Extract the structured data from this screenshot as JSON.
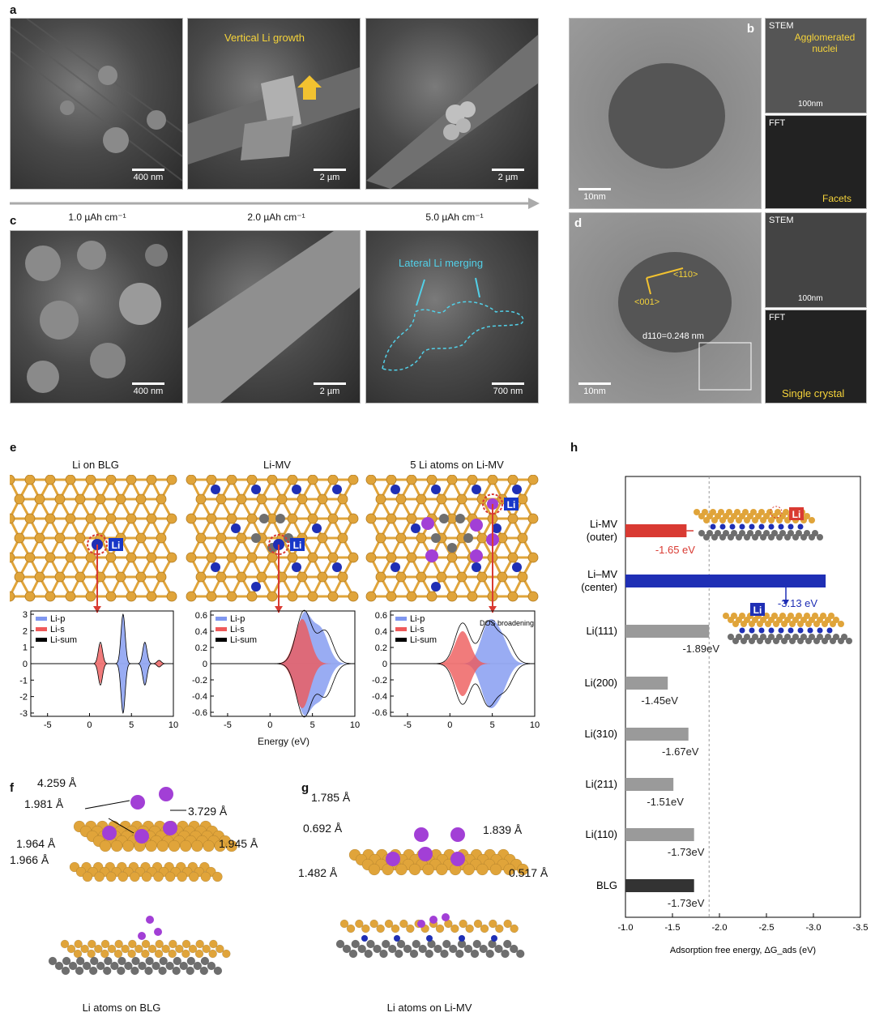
{
  "panels": {
    "a": "a",
    "b": "b",
    "c": "c",
    "d": "d",
    "e": "e",
    "f": "f",
    "g": "g",
    "h": "h"
  },
  "panel_a": {
    "images": [
      {
        "scale": "400 nm"
      },
      {
        "scale": "2 µm",
        "annotation": "Vertical Li growth"
      },
      {
        "scale": "2 µm"
      }
    ],
    "capacities": [
      "1.0 µAh cm⁻¹",
      "2.0 µAh cm⁻¹",
      "5.0 µAh cm⁻¹"
    ]
  },
  "panel_b": {
    "scale": "10nm",
    "stem_label": "STEM",
    "stem_annotation": "Agglomerated nuclei",
    "stem_scale": "100nm",
    "fft_label": "FFT",
    "fft_annotation": "Facets"
  },
  "panel_c": {
    "images": [
      {
        "scale": "400 nm"
      },
      {
        "scale": "2 µm"
      },
      {
        "scale": "700 nm",
        "annotation": "Lateral Li merging"
      }
    ]
  },
  "panel_d": {
    "scale": "10nm",
    "dir1": "<001>",
    "dir2": "<110>",
    "dspacing": "d110=0.248 nm",
    "stem_label": "STEM",
    "stem_scale": "100nm",
    "fft_label": "FFT",
    "fft_annotation": "Single crystal"
  },
  "panel_e": {
    "titles": [
      "Li on BLG",
      "Li-MV",
      "5 Li atoms on Li-MV"
    ],
    "atom_label": "Li",
    "dos_annotation": "DOS broadening",
    "xlabel": "Energy (eV)",
    "legend": [
      "Li-p",
      "Li-s",
      "Li-sum"
    ]
  },
  "panel_f": {
    "distances": [
      "4.259 Å",
      "1.981 Å",
      "3.729 Å",
      "1.964 Å",
      "1.945 Å",
      "1.966 Å"
    ],
    "caption": "Li atoms on BLG"
  },
  "panel_g": {
    "distances": [
      "1.785 Å",
      "0.692 Å",
      "1.839 Å",
      "1.482 Å",
      "0.517 Å"
    ],
    "caption": "Li atoms on Li-MV"
  },
  "colors": {
    "red": "#d93a32",
    "blue": "#1f2fb5",
    "gray": "#9a9a9a",
    "dark": "#333333",
    "gold": "#e0a43a",
    "graphene": "#6e6e6e",
    "purple": "#a23fd6",
    "dos_p": "#7f97f0",
    "dos_s": "#ee5a5a"
  },
  "chart_data": [
    {
      "type": "bar",
      "orientation": "horizontal",
      "categories": [
        "Li-MV\n(outer)",
        "Li–MV\n(center)",
        "Li(111)",
        "Li(200)",
        "Li(310)",
        "Li(211)",
        "Li(110)",
        "BLG"
      ],
      "values": [
        -1.65,
        -3.13,
        -1.89,
        -1.45,
        -1.67,
        -1.51,
        -1.73,
        -1.73
      ],
      "value_labels": [
        "-1.65 eV",
        "-3.13 eV",
        "-1.89eV",
        "-1.45eV",
        "-1.67eV",
        "-1.51eV",
        "-1.73eV",
        "-1.73eV"
      ],
      "xlabel": "Adsorption free energy, ΔG_ads (eV)",
      "xlim": [
        -1.0,
        -3.5
      ],
      "xticks": [
        -1.0,
        -1.5,
        -2.0,
        -2.5,
        -3.0,
        -3.5
      ],
      "xtick_labels": [
        "-1.0",
        "-1.5",
        "-2.0",
        "-2.5",
        "-3.0",
        "-3.5"
      ],
      "reference_line": -1.89,
      "bar_colors": [
        "#d93a32",
        "#1f2fb5",
        "#9a9a9a",
        "#9a9a9a",
        "#9a9a9a",
        "#9a9a9a",
        "#9a9a9a",
        "#333333"
      ]
    },
    {
      "type": "area",
      "title": "Li on BLG",
      "xlim": [
        -7,
        10
      ],
      "ylim": [
        -3.2,
        3.2
      ],
      "xticks": [
        -5,
        0,
        5,
        10
      ],
      "yticks": [
        -3,
        -2,
        -1,
        0,
        1,
        2,
        3
      ],
      "series": [
        {
          "name": "Li-p",
          "peaks": [
            [
              4.0,
              3.0
            ],
            [
              6.6,
              1.3
            ]
          ]
        },
        {
          "name": "Li-s",
          "peaks": [
            [
              1.3,
              1.2
            ],
            [
              8.3,
              0.2
            ]
          ]
        },
        {
          "name": "Li-sum",
          "peaks": [
            [
              1.3,
              1.3
            ],
            [
              4.0,
              3.0
            ],
            [
              6.6,
              1.3
            ],
            [
              8.3,
              0.2
            ]
          ]
        }
      ]
    },
    {
      "type": "area",
      "title": "Li-MV",
      "xlim": [
        -7,
        10
      ],
      "ylim": [
        -0.65,
        0.65
      ],
      "xticks": [
        -5,
        0,
        5,
        10
      ],
      "yticks": [
        -0.6,
        -0.4,
        -0.2,
        0,
        0.2,
        0.4,
        0.6
      ],
      "series": [
        {
          "name": "Li-p",
          "peaks": [
            [
              4.0,
              0.6
            ],
            [
              6.0,
              0.4
            ]
          ]
        },
        {
          "name": "Li-s",
          "peaks": [
            [
              3.8,
              0.55
            ]
          ]
        },
        {
          "name": "Li-sum",
          "peaks": [
            [
              4.0,
              0.65
            ],
            [
              6.5,
              0.4
            ]
          ]
        }
      ]
    },
    {
      "type": "area",
      "title": "5 Li atoms on Li-MV",
      "xlim": [
        -7,
        10
      ],
      "ylim": [
        -0.65,
        0.65
      ],
      "xticks": [
        -5,
        0,
        5,
        10
      ],
      "yticks": [
        -0.6,
        -0.4,
        -0.2,
        0,
        0.2,
        0.4,
        0.6
      ],
      "series": [
        {
          "name": "Li-p",
          "peaks": [
            [
              4.5,
              0.45
            ],
            [
              6.0,
              0.3
            ]
          ]
        },
        {
          "name": "Li-s",
          "peaks": [
            [
              1.5,
              0.4
            ]
          ]
        },
        {
          "name": "Li-sum",
          "peaks": [
            [
              1.5,
              0.5
            ],
            [
              4.5,
              0.5
            ],
            [
              6.5,
              0.3
            ]
          ]
        }
      ]
    }
  ]
}
